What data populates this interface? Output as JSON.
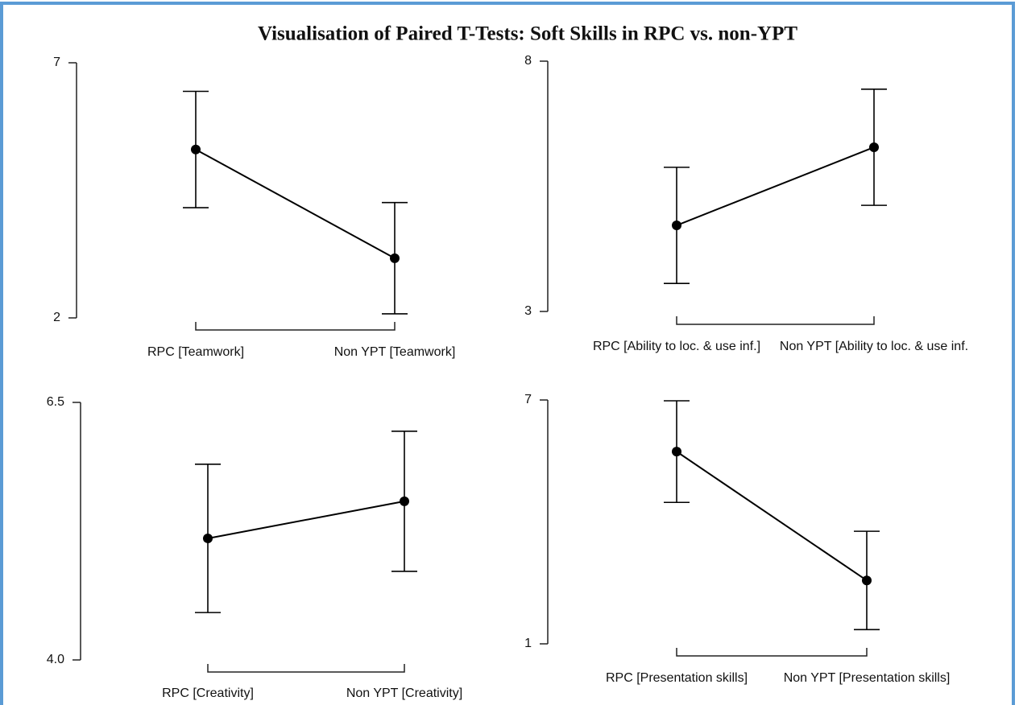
{
  "title": "Visualisation of Paired T-Tests: Soft Skills in RPC vs. non-YPT",
  "chart_data": [
    {
      "type": "line",
      "categories": [
        "RPC [Teamwork]",
        "Non YPT [Teamwork]"
      ],
      "values": [
        5.3,
        3.17
      ],
      "errors": [
        1.14,
        1.09
      ],
      "color": "#000000",
      "ylim": [
        2,
        7
      ],
      "yticks": [
        2,
        7
      ]
    },
    {
      "type": "line",
      "categories": [
        "RPC [Ability to loc. & use inf.]",
        "Non YPT [Ability to loc. & use inf."
      ],
      "values": [
        4.72,
        6.28
      ],
      "errors": [
        1.16,
        1.16
      ],
      "color": "#000000",
      "ylim": [
        3,
        8
      ],
      "yticks": [
        3,
        8
      ]
    },
    {
      "type": "line",
      "categories": [
        "RPC [Creativity]",
        "Non YPT [Creativity]"
      ],
      "values": [
        5.18,
        5.54
      ],
      "errors": [
        0.72,
        0.68
      ],
      "color": "#000000",
      "ylim": [
        4,
        6.5
      ],
      "yticks": [
        {
          "value": 4,
          "label": "4.0"
        },
        6.5
      ]
    },
    {
      "type": "line",
      "categories": [
        "RPC [Presentation skills]",
        "Non YPT [Presentation skills]"
      ],
      "values": [
        5.73,
        2.56
      ],
      "errors": [
        1.25,
        1.21
      ],
      "color": "#000000",
      "ylim": [
        1,
        7
      ],
      "yticks": [
        1,
        7
      ]
    }
  ]
}
